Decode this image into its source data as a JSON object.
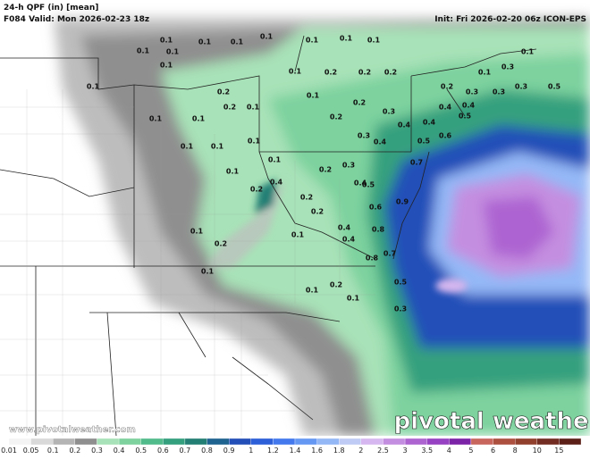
{
  "header": {
    "title": "24-h QPF (in) [mean]",
    "valid": "F084 Valid: Mon 2026-02-23 18z",
    "init": "Init: Fri 2026-02-20 06z ICON-EPS"
  },
  "map": {
    "labels": [
      0.1,
      0.1,
      0.1,
      0.1,
      0.1,
      0.1,
      0.1,
      0.1,
      0.1,
      0.1,
      0.1,
      0.1,
      0.2,
      0.2,
      0.2,
      0.1,
      0.3,
      0.1,
      0.2,
      0.3,
      0.3,
      0.3,
      0.5,
      0.2,
      0.1,
      0.2,
      0.2,
      0.1,
      0.1,
      0.1,
      0.2,
      0.3,
      0.4,
      0.5,
      0.4,
      0.4,
      0.3,
      0.4,
      0.5,
      0.6,
      0.1,
      0.1,
      0.1,
      0.4,
      0.1,
      0.2,
      0.3,
      0.7,
      0.4,
      0.2,
      0.1,
      0.2,
      0.2,
      0.6,
      0.9,
      0.4,
      0.4,
      0.8,
      0.8,
      0.7,
      0.1,
      0.1,
      0.2,
      0.1,
      0.2,
      0.5,
      0.1,
      0.1,
      0.3,
      0.5,
      0.4
    ]
  },
  "watermark": "pivotal weather",
  "credit": "www.pivotalweather.com",
  "colorbar": {
    "labels": [
      0.01,
      0.05,
      0.1,
      0.2,
      0.3,
      0.4,
      0.5,
      0.6,
      0.7,
      0.8,
      0.9,
      1,
      1.2,
      1.4,
      1.6,
      1.8,
      2,
      2.5,
      3,
      3.5,
      4,
      5,
      6,
      8,
      10,
      15
    ],
    "colors": [
      "#f4f4f4",
      "#d9d9d9",
      "#b4b4b4",
      "#8f8f8f",
      "#a8e2b8",
      "#7dd29e",
      "#52bb8c",
      "#35a07e",
      "#237f74",
      "#1f6390",
      "#2350b8",
      "#2c5fd8",
      "#4479ee",
      "#6598f3",
      "#94b8f6",
      "#bfcbf4",
      "#d6b7ef",
      "#c48ee0",
      "#ad64d1",
      "#9642c2",
      "#7c24a8",
      "#c8665e",
      "#ad503f",
      "#91402e",
      "#732d22",
      "#5c2019"
    ]
  }
}
